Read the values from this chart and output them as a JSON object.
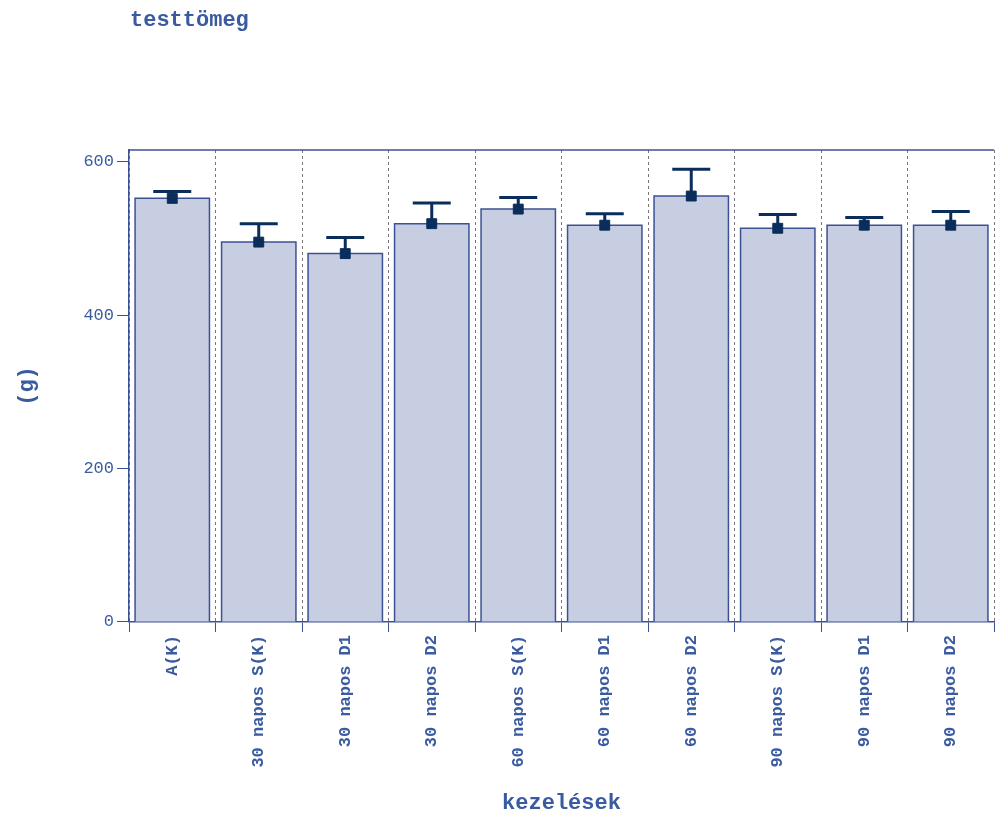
{
  "chart_data": {
    "type": "bar",
    "title": "testtömeg",
    "xlabel": "kezelések",
    "ylabel": "(g)",
    "categories": [
      "A(K)",
      "30 napos S(K)",
      "30 napos D1",
      "30 napos D2",
      "60 napos S(K)",
      "60 napos D1",
      "60 napos D2",
      "90 napos S(K)",
      "90 napos D1",
      "90 napos D2"
    ],
    "series": [
      {
        "color": "#c8cee1",
        "values": [
          552,
          495,
          480,
          519,
          538,
          517,
          555,
          513,
          517,
          517
        ],
        "errors": [
          [
            552,
            561
          ],
          [
            495,
            519
          ],
          [
            480,
            501
          ],
          [
            519,
            546
          ],
          [
            538,
            553
          ],
          [
            517,
            532
          ],
          [
            555,
            590
          ],
          [
            513,
            531
          ],
          [
            517,
            527
          ],
          [
            517,
            535
          ]
        ]
      },
      {
        "type": "scatter",
        "color": "#0b2d5b",
        "values": [
          552,
          495,
          480,
          519,
          538,
          517,
          555,
          513,
          517,
          517
        ]
      }
    ],
    "marker": "square",
    "grid": "x",
    "ylim": [
      0,
      615
    ],
    "yticks": [
      0,
      200,
      400,
      600
    ]
  }
}
